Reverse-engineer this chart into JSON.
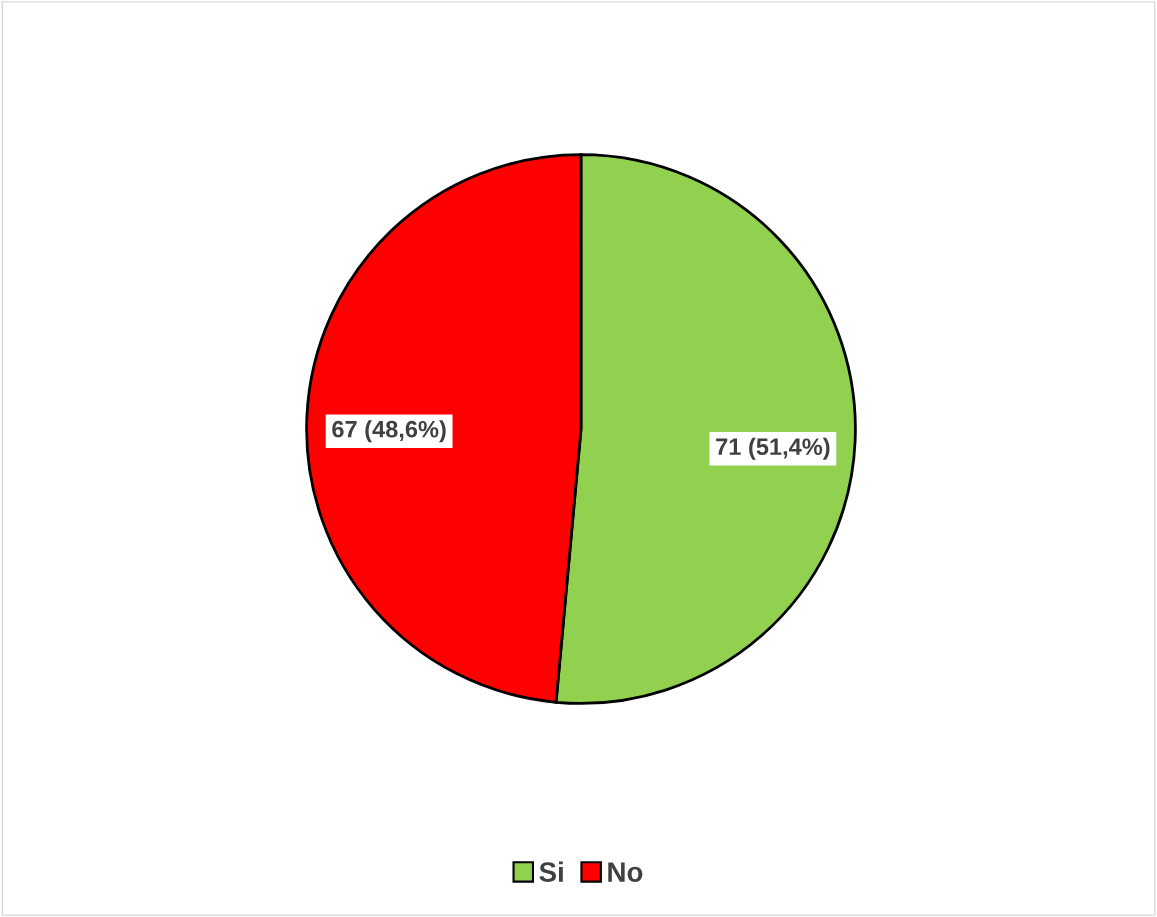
{
  "chart_data": {
    "type": "pie",
    "categories": [
      "Si",
      "No"
    ],
    "values": [
      71,
      67
    ],
    "colors": [
      "#92d050",
      "#ff0000"
    ],
    "value_labels": [
      "71 (51,4%)",
      "67 (48,6%)"
    ],
    "legend": "bottom"
  }
}
